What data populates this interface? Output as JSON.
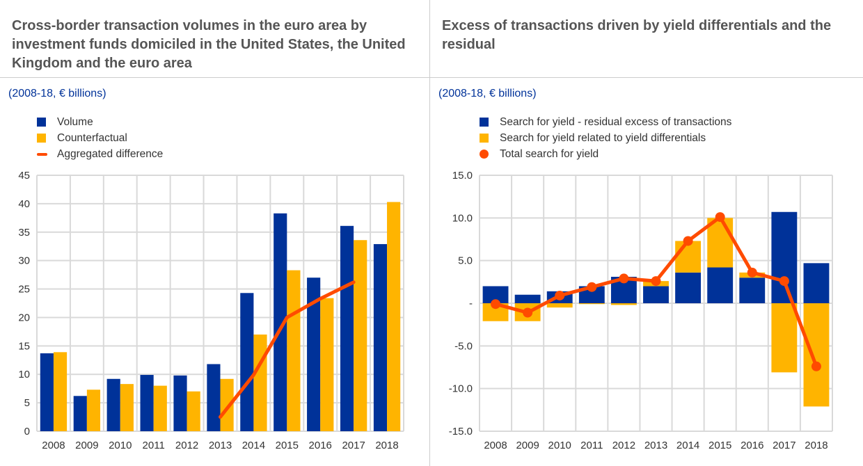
{
  "colors": {
    "blue": "#003299",
    "yellow": "#FFB400",
    "orange": "#FF4B00",
    "grid": "#d9d9d9"
  },
  "chart_data": [
    {
      "type": "bar",
      "title": "Cross-border transaction volumes in the euro area by investment funds domiciled in the United States, the United Kingdom and the euro area",
      "subtitle": "(2008-18, € billions)",
      "categories": [
        "2008",
        "2009",
        "2010",
        "2011",
        "2012",
        "2013",
        "2014",
        "2015",
        "2016",
        "2017",
        "2018"
      ],
      "ylim": [
        0,
        45
      ],
      "yticks": [
        "0",
        "5",
        "10",
        "15",
        "20",
        "25",
        "30",
        "35",
        "40",
        "45"
      ],
      "grid": true,
      "legend_placement": "top-left",
      "series": [
        {
          "name": "Volume",
          "kind": "bar",
          "values": [
            13.7,
            6.2,
            9.2,
            9.9,
            9.8,
            11.8,
            24.3,
            38.3,
            27.0,
            36.1,
            32.9
          ]
        },
        {
          "name": "Counterfactual",
          "kind": "bar",
          "values": [
            13.9,
            7.3,
            8.3,
            8.0,
            7.0,
            9.2,
            17.0,
            28.3,
            23.4,
            33.6,
            40.3
          ]
        },
        {
          "name": "Aggregated difference",
          "kind": "line",
          "values": [
            null,
            null,
            null,
            null,
            null,
            2.5,
            9.9,
            20.0,
            23.3,
            26.2,
            null
          ]
        }
      ]
    },
    {
      "type": "bar",
      "stacked": true,
      "title": "Excess of transactions driven by yield differentials and the residual",
      "subtitle": "(2008-18, € billions)",
      "categories": [
        "2008",
        "2009",
        "2010",
        "2011",
        "2012",
        "2013",
        "2014",
        "2015",
        "2016",
        "2017",
        "2018"
      ],
      "ylim": [
        -15,
        15
      ],
      "yticks": [
        "-15.0",
        "-10.0",
        "-5.0",
        "-",
        "5.0",
        "10.0",
        "15.0"
      ],
      "grid": true,
      "legend_placement": "top-left",
      "series": [
        {
          "name": "Search for yield - residual excess of transactions",
          "kind": "bar",
          "values": [
            2.0,
            1.0,
            1.4,
            2.0,
            3.1,
            2.0,
            3.6,
            4.2,
            3.0,
            10.7,
            4.7
          ]
        },
        {
          "name": "Search for yield related to yield differentials",
          "kind": "bar",
          "values": [
            -2.1,
            -2.1,
            -0.5,
            -0.1,
            -0.2,
            0.6,
            3.7,
            5.8,
            0.6,
            -8.1,
            -12.1
          ]
        },
        {
          "name": "Total search for yield",
          "kind": "line-markers",
          "values": [
            -0.1,
            -1.1,
            0.9,
            1.9,
            2.9,
            2.6,
            7.3,
            10.1,
            3.6,
            2.6,
            -7.4
          ]
        }
      ]
    }
  ]
}
